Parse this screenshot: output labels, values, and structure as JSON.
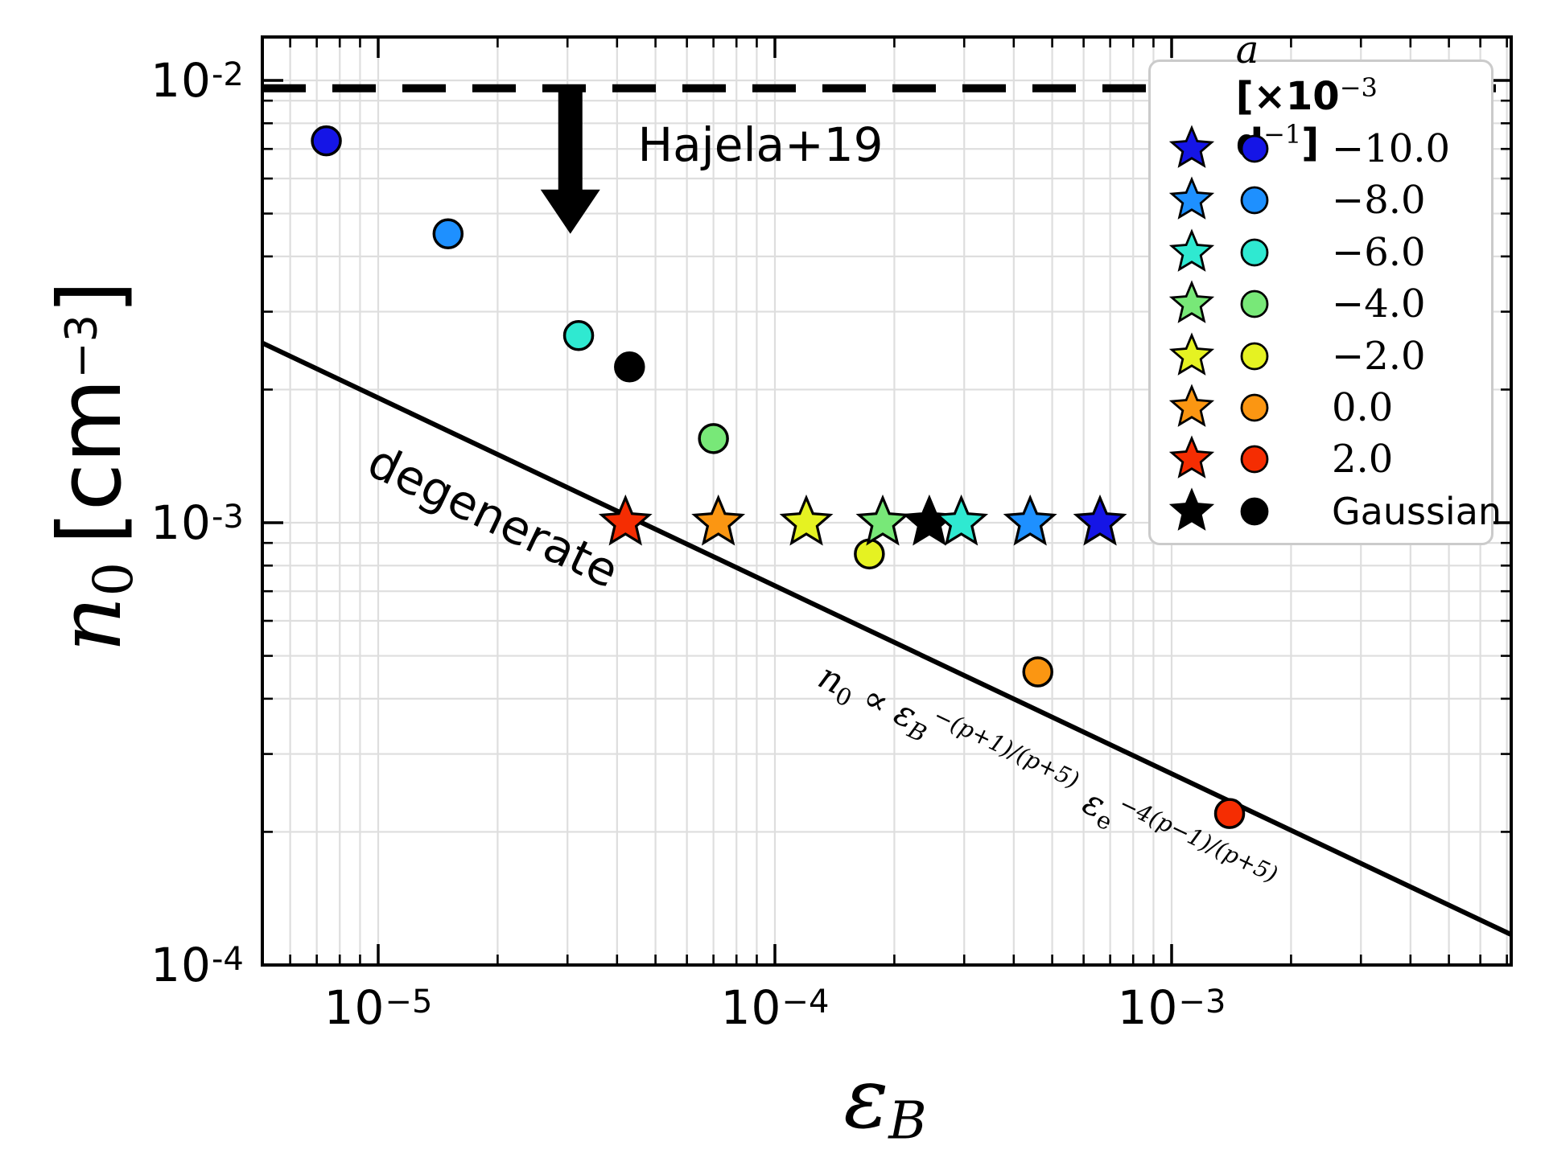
{
  "chart_data": {
    "type": "scatter",
    "x_axis": {
      "scale": "log",
      "range": [
        5.1e-06,
        0.0072
      ],
      "label_symbol": "ε",
      "label_subscript": "B",
      "ticks": [
        {
          "base": "10",
          "exponent": "−5",
          "value": 1e-05
        },
        {
          "base": "10",
          "exponent": "−4",
          "value": 0.0001
        },
        {
          "base": "10",
          "exponent": "−3",
          "value": 0.001
        }
      ]
    },
    "y_axis": {
      "scale": "log",
      "range": [
        0.0001,
        0.0125
      ],
      "label_symbol": "n",
      "label_subscript": "0",
      "unit_open": "[cm",
      "unit_exponent": "−3",
      "unit_close": "]",
      "ticks": [
        {
          "base": "10",
          "exponent": "-2",
          "value": 0.01
        },
        {
          "base": "10",
          "exponent": "-3",
          "value": 0.001
        },
        {
          "base": "10",
          "exponent": "-4",
          "value": 0.0001
        }
      ]
    },
    "legend": {
      "title_symbol": "a",
      "title_open": "[×10",
      "title_exponent": "−3",
      "title_unit": "d",
      "title_unit_exponent": "−1",
      "title_close": "]"
    },
    "series": [
      {
        "a_label": "−10.0",
        "color": "#1515e6",
        "star": {
          "x": 0.00066,
          "y": 0.001
        },
        "circle": {
          "x": 7.4e-06,
          "y": 0.0073
        }
      },
      {
        "a_label": "−8.0",
        "color": "#1e90ff",
        "star": {
          "x": 0.00044,
          "y": 0.001
        },
        "circle": {
          "x": 1.5e-05,
          "y": 0.0045
        }
      },
      {
        "a_label": "−6.0",
        "color": "#2fe9d1",
        "star": {
          "x": 0.000295,
          "y": 0.001
        },
        "circle": {
          "x": 3.2e-05,
          "y": 0.00265
        }
      },
      {
        "a_label": "−4.0",
        "color": "#78e878",
        "star": {
          "x": 0.000187,
          "y": 0.001
        },
        "circle": {
          "x": 7e-05,
          "y": 0.00155
        }
      },
      {
        "a_label": "−2.0",
        "color": "#e5f222",
        "star": {
          "x": 0.00012,
          "y": 0.001
        },
        "circle": {
          "x": 0.000173,
          "y": 0.00085
        }
      },
      {
        "a_label": "0.0",
        "color": "#fb9612",
        "star": {
          "x": 7.2e-05,
          "y": 0.001
        },
        "circle": {
          "x": 0.00046,
          "y": 0.00046
        }
      },
      {
        "a_label": "2.0",
        "color": "#f52d02",
        "star": {
          "x": 4.2e-05,
          "y": 0.001
        },
        "circle": {
          "x": 0.0014,
          "y": 0.00022
        }
      },
      {
        "a_label": "Gaussian",
        "color": "#000000",
        "star": {
          "x": 0.000245,
          "y": 0.001
        },
        "circle": {
          "x": 4.3e-05,
          "y": 0.00225
        }
      }
    ],
    "hajela": {
      "label": "Hajela+19",
      "y": 0.0096,
      "arrow": {
        "x": 3.05e-05,
        "y_from": 0.0096,
        "y_to": 0.0045
      }
    },
    "degenerate_line": {
      "label": "degenerate",
      "points": [
        {
          "x": 5.1e-06,
          "y": 0.00255
        },
        {
          "x": 0.0072,
          "y": 0.000117
        }
      ]
    },
    "equation": {
      "lhs": "n",
      "lhs_sub": "0",
      "prop": "∝",
      "eps1": "ε",
      "eps1_sub": "B",
      "exp1": "−(p+1)/(p+5)",
      "eps2": "ε",
      "eps2_sub": "e",
      "exp2": "−4(p−1)/(p+5)"
    },
    "grid": true,
    "legend_position": "upper right",
    "colors": {
      "grid": "#dedede",
      "axes": "#000000",
      "marker_edge": "#000000"
    }
  }
}
